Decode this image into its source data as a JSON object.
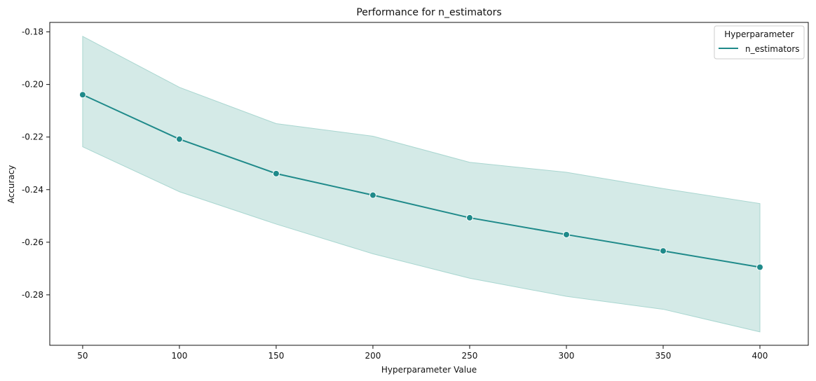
{
  "chart_data": {
    "type": "line",
    "title": "Performance for n_estimators",
    "xlabel": "Hyperparameter Value",
    "ylabel": "Accuracy",
    "x": [
      50,
      100,
      150,
      200,
      250,
      300,
      350,
      400
    ],
    "x_ticks": [
      "50",
      "100",
      "150",
      "200",
      "250",
      "300",
      "350",
      "400"
    ],
    "y_ticks": [
      "-0.18",
      "-0.20",
      "-0.22",
      "-0.24",
      "-0.26",
      "-0.28"
    ],
    "y_tick_values": [
      -0.18,
      -0.2,
      -0.22,
      -0.24,
      -0.26,
      -0.28
    ],
    "xlim": [
      33,
      425
    ],
    "ylim": [
      -0.2992,
      -0.1764
    ],
    "grid": false,
    "legend": {
      "title": "Hyperparameter",
      "placement": "top-right",
      "entries": [
        "n_estimators"
      ]
    },
    "series": [
      {
        "name": "n_estimators",
        "color": "#1f8a8a",
        "band_color": "#a9d6d0",
        "values": [
          -0.2039,
          -0.2208,
          -0.2339,
          -0.2421,
          -0.2507,
          -0.2571,
          -0.2633,
          -0.2695
        ],
        "upper": [
          -0.1817,
          -0.2011,
          -0.2149,
          -0.2197,
          -0.2296,
          -0.2334,
          -0.2396,
          -0.2453
        ],
        "lower": [
          -0.2237,
          -0.2408,
          -0.2531,
          -0.2644,
          -0.2737,
          -0.2806,
          -0.2855,
          -0.2941
        ]
      }
    ]
  }
}
